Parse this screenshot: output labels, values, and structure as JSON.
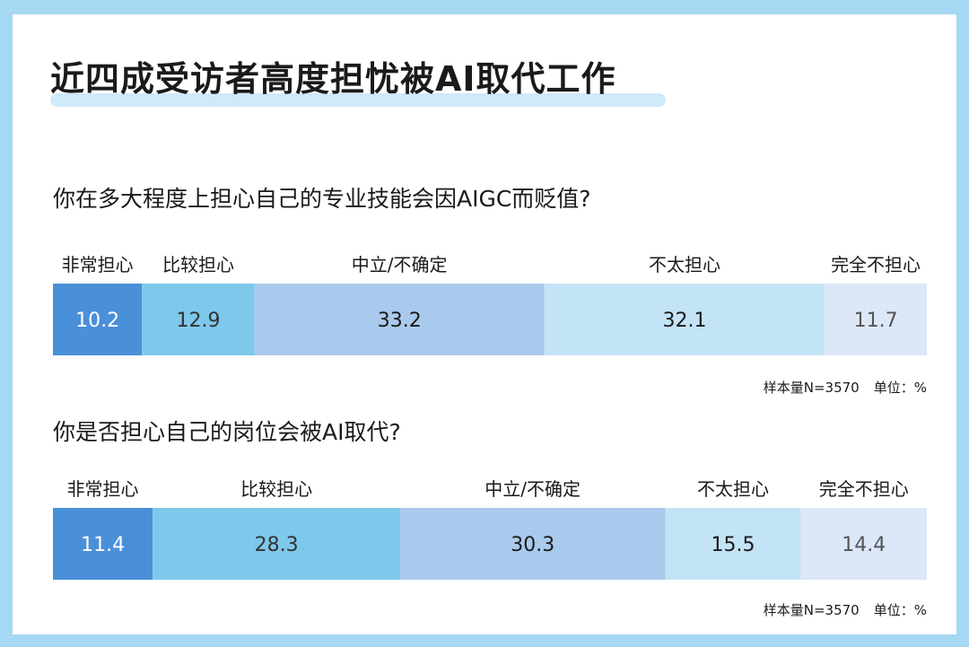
{
  "header": {
    "title": "近四成受访者高度担忧被AI取代工作"
  },
  "chart_data": [
    {
      "type": "bar",
      "orientation": "horizontal-stacked",
      "question": "你在多大程度上担心自己的专业技能会因AIGC而贬值?",
      "categories": [
        "非常担心",
        "比较担心",
        "中立/不确定",
        "不太担心",
        "完全不担心"
      ],
      "values": [
        10.2,
        12.9,
        33.2,
        32.1,
        11.7
      ],
      "value_labels": [
        "10.2",
        "12.9",
        "33.2",
        "32.1",
        "11.7"
      ],
      "colors": [
        "#4a90d9",
        "#7ec8ec",
        "#a9caec",
        "#c3e3f6",
        "#dce8f8"
      ],
      "value_text_colors": [
        "#ffffff",
        "#333333",
        "#1a1a1a",
        "#1a1a1a",
        "#555555"
      ],
      "sample_note": "样本量N=3570",
      "unit_note": "单位：%"
    },
    {
      "type": "bar",
      "orientation": "horizontal-stacked",
      "question": "你是否担心自己的岗位会被AI取代?",
      "categories": [
        "非常担心",
        "比较担心",
        "中立/不确定",
        "不太担心",
        "完全不担心"
      ],
      "values": [
        11.4,
        28.3,
        30.3,
        15.5,
        14.4
      ],
      "value_labels": [
        "11.4",
        "28.3",
        "30.3",
        "15.5",
        "14.4"
      ],
      "colors": [
        "#4a90d9",
        "#7ec8ec",
        "#a9caec",
        "#c3e3f6",
        "#dce8f8"
      ],
      "value_text_colors": [
        "#ffffff",
        "#333333",
        "#1a1a1a",
        "#1a1a1a",
        "#555555"
      ],
      "sample_note": "样本量N=3570",
      "unit_note": "单位：%"
    }
  ]
}
